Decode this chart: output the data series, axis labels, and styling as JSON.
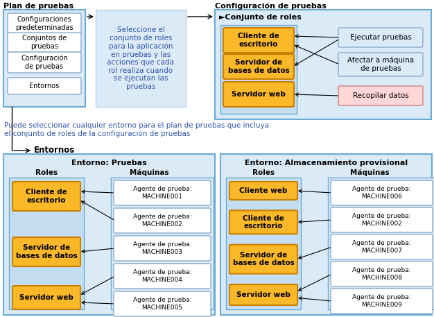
{
  "bg_color": "#ffffff",
  "plan_label": "Plan de pruebas",
  "config_label": "Configuración de pruebas",
  "entornos_label": "Entornos",
  "plan_items": [
    "Configuraciones\npredeterminadas",
    "Conjuntos de\npruebas",
    "Configuración\nde pruebas",
    "Entornos"
  ],
  "callout_text": "Seleccione el\nconjunto de roles\npara la aplicación\nen pruebas y las\nacciones que cada\nrol realiza cuando\nse ejecutan las\npruebas",
  "conjunto_roles_label": "Conjunto de roles",
  "roles_config": [
    "Cliente de\nescritorio",
    "Servidor de\nbases de datos",
    "Servidor web"
  ],
  "actions_config": [
    "Ejecutar pruebas",
    "Afectar a máquina\nde pruebas",
    "Recopilar datos"
  ],
  "note_text": "Puede seleccionar cualquier entorno para el plan de pruebas que incluya\nel conjunto de roles de la configuración de pruebas",
  "entorno1_label": "Entorno: Pruebas",
  "entorno2_label": "Entorno: Almacenamiento provisional",
  "roles_label": "Roles",
  "machines_label": "Máquinas",
  "env1_roles": [
    "Cliente de\nescritorio",
    "Servidor de\nbases de datos",
    "Servidor web"
  ],
  "env1_machines": [
    "Agente de prueba:\nMACHINE001",
    "Agente de prueba:\nMACHINE002",
    "Agente de prueba:\nMACHINE003",
    "Agente de prueba:\nMACHINE004",
    "Agente de prueba:\nMACHINE005"
  ],
  "env2_roles": [
    "Cliente web",
    "Cliente de\nescritorio",
    "Servidor de\nbases de datos",
    "Servidor web"
  ],
  "env2_machines": [
    "Agente de prueba:\nMACHINE006",
    "Agente de prueba:\nMACHINE002",
    "Agente de prueba:\nMACHINE007",
    "Agente de prueba:\nMACHINE008",
    "Agente de prueba:\nMACHINE009"
  ],
  "orange_fill": "#fbb829",
  "orange_border": "#c88000",
  "light_blue_fill": "#daeaf7",
  "light_blue_border": "#6aaad4",
  "roles_col_fill": "#c5ddf0",
  "mach_col_fill": "#daeaf7",
  "white_box_fill": "#ffffff",
  "white_box_border": "#8aabcb",
  "callout_fill": "#daeaf7",
  "callout_border": "#8aabcb",
  "pink_fill": "#ffd7d7",
  "pink_border": "#d08080",
  "blue_action_fill": "#daeaf7",
  "blue_action_border": "#8aabcb",
  "note_color": "#3355aa",
  "arrow_color": "#000000"
}
